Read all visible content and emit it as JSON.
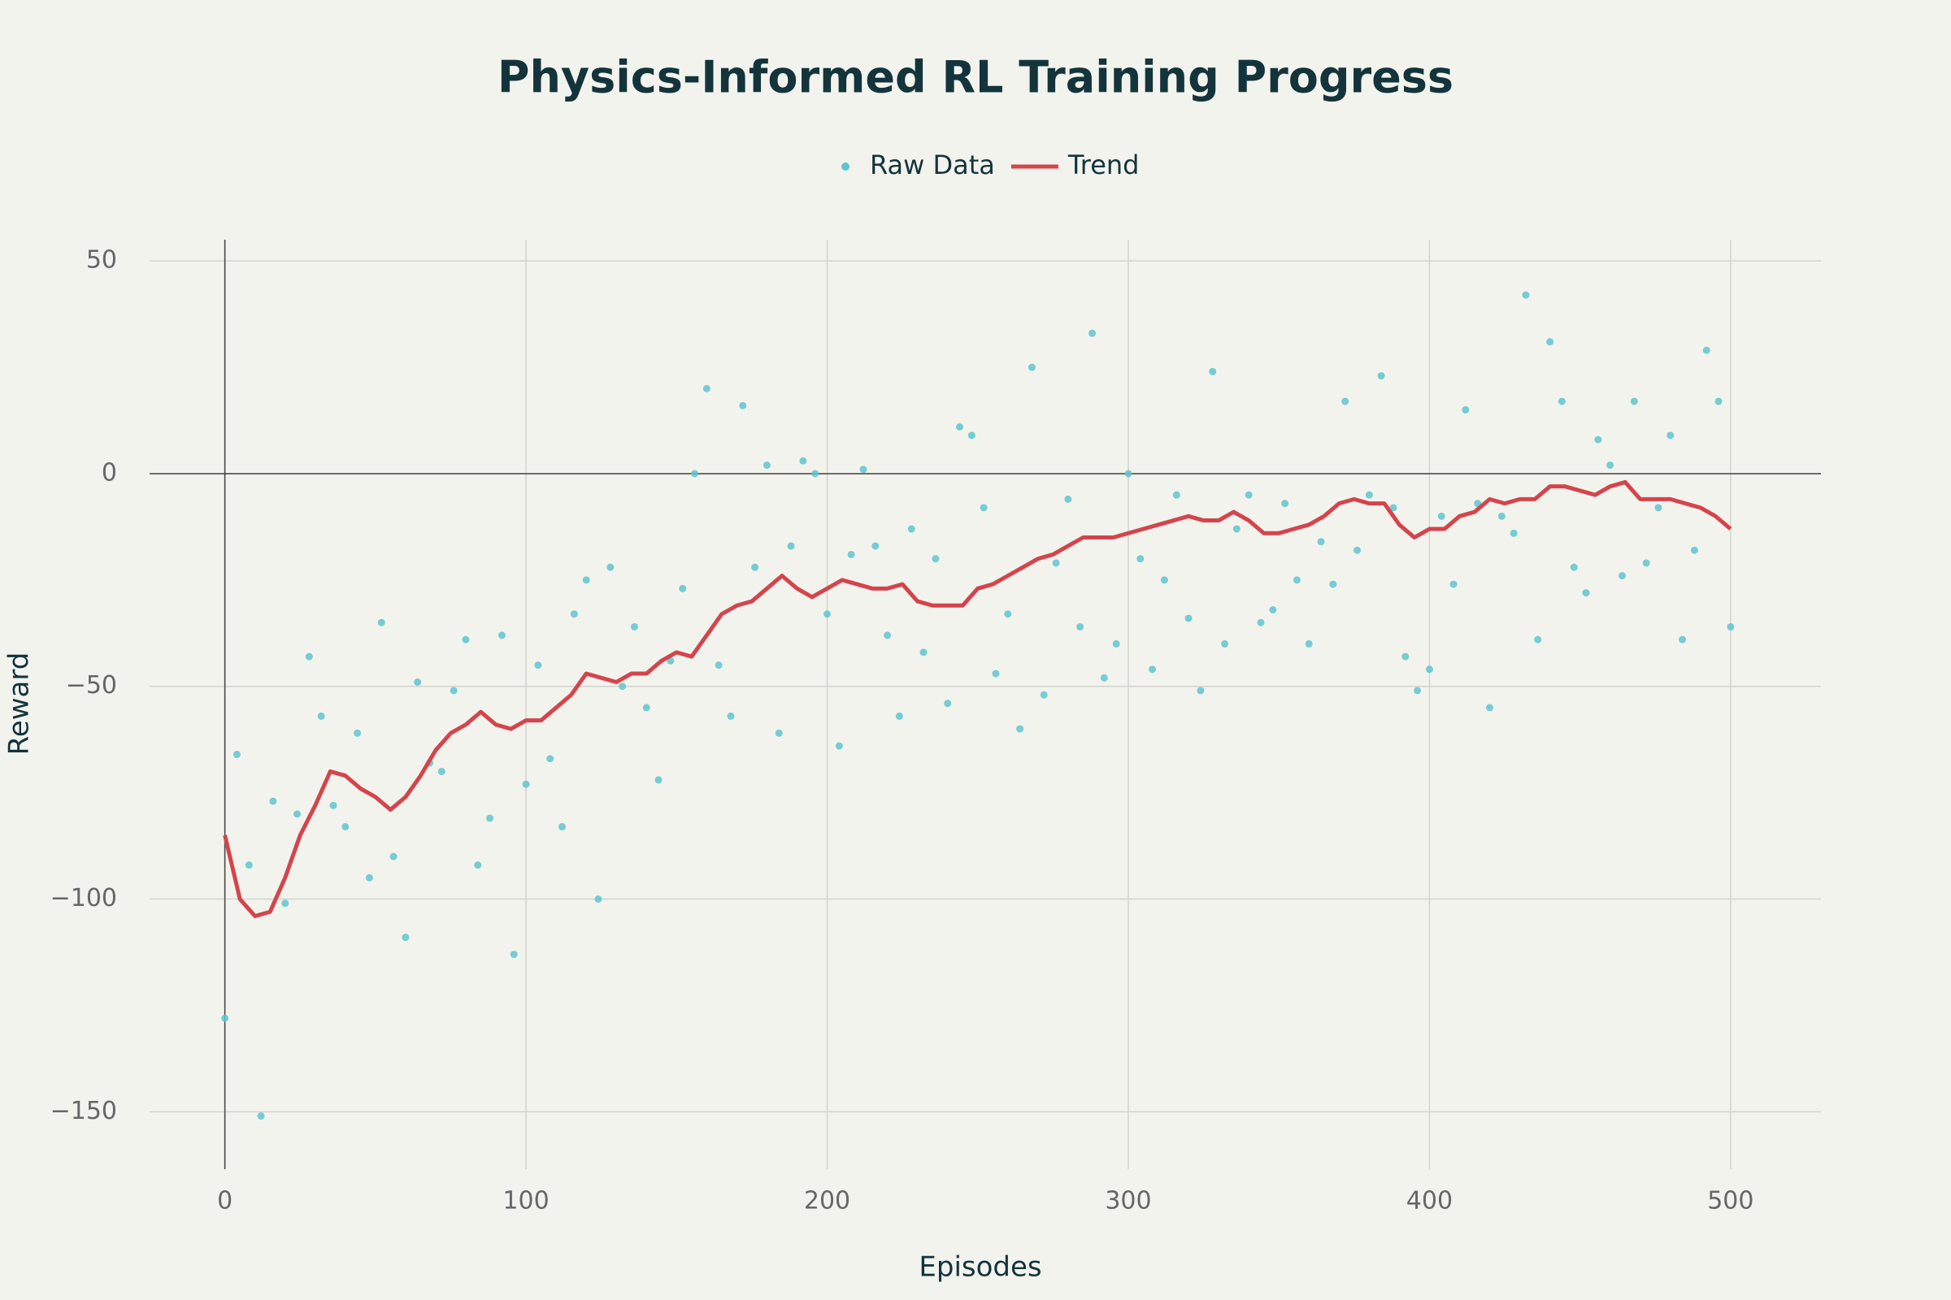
{
  "chart_data": {
    "type": "scatter",
    "title": "Physics-Informed RL Training Progress",
    "x_label": "Episodes",
    "y_label": "Reward",
    "xlim": [
      -25,
      530
    ],
    "ylim": [
      -163.5,
      55
    ],
    "xticks": [
      0,
      100,
      200,
      300,
      400,
      500
    ],
    "yticks": [
      50,
      0,
      {
        "value": -50,
        "label": "−50"
      },
      {
        "value": -100,
        "label": "−100"
      },
      {
        "value": -150,
        "label": "−150"
      }
    ],
    "grid": true,
    "zeroline": true,
    "legend": "top",
    "series": [
      {
        "name": "Raw Data",
        "mode": "markers",
        "color": "#5ec4cf",
        "x": [
          0,
          4,
          8,
          12,
          16,
          20,
          24,
          28,
          32,
          36,
          40,
          44,
          48,
          52,
          56,
          60,
          64,
          68,
          72,
          76,
          80,
          84,
          88,
          92,
          96,
          100,
          104,
          108,
          112,
          116,
          120,
          124,
          128,
          132,
          136,
          140,
          144,
          148,
          152,
          156,
          160,
          164,
          168,
          172,
          176,
          180,
          184,
          188,
          192,
          196,
          200,
          204,
          208,
          212,
          216,
          220,
          224,
          228,
          232,
          236,
          240,
          244,
          248,
          252,
          256,
          260,
          264,
          268,
          272,
          276,
          280,
          284,
          288,
          292,
          296,
          300,
          304,
          308,
          312,
          316,
          320,
          324,
          328,
          332,
          336,
          340,
          344,
          348,
          352,
          356,
          360,
          364,
          368,
          372,
          376,
          380,
          384,
          388,
          392,
          396,
          400,
          404,
          408,
          412,
          416,
          420,
          424,
          428,
          432,
          436,
          440,
          444,
          448,
          452,
          456,
          460,
          464,
          468,
          472,
          476,
          480,
          484,
          488,
          492,
          496,
          500
        ],
        "values": [
          -128,
          -66,
          -92,
          -151,
          -77,
          -101,
          -80,
          -43,
          -57,
          -78,
          -83,
          -61,
          -95,
          -35,
          -90,
          -109,
          -49,
          -68,
          -70,
          -51,
          -39,
          -92,
          -81,
          -38,
          -113,
          -73,
          -45,
          -67,
          -83,
          -33,
          -25,
          -100,
          -22,
          -50,
          -36,
          -55,
          -72,
          -44,
          -27,
          0,
          20,
          -45,
          -57,
          16,
          -22,
          2,
          -61,
          -17,
          3,
          0,
          -33,
          -64,
          -19,
          1,
          -17,
          -38,
          -57,
          -13,
          -42,
          -20,
          -54,
          11,
          9,
          -8,
          -47,
          -33,
          -60,
          25,
          -52,
          -21,
          -6,
          -36,
          33,
          -48,
          -40,
          0,
          -20,
          -46,
          -25,
          -5,
          -34,
          -51,
          24,
          -40,
          -13,
          -5,
          -35,
          -32,
          -7,
          -25,
          -40,
          -16,
          -26,
          17,
          -18,
          -5,
          23,
          -8,
          -43,
          -51,
          -46,
          -10,
          -26,
          15,
          -7,
          -55,
          -10,
          -14,
          42,
          -39,
          31,
          17,
          -22,
          -28,
          8,
          2,
          -24,
          17,
          -21,
          -8,
          9,
          -39,
          -18,
          29,
          17,
          -36
        ]
      },
      {
        "name": "Trend",
        "mode": "lines",
        "color": "#d5444b",
        "x": [
          0,
          5,
          10,
          15,
          20,
          25,
          30,
          35,
          40,
          45,
          50,
          55,
          60,
          65,
          70,
          75,
          80,
          85,
          90,
          95,
          100,
          105,
          110,
          115,
          120,
          125,
          130,
          135,
          140,
          145,
          150,
          155,
          160,
          165,
          170,
          175,
          180,
          185,
          190,
          195,
          200,
          205,
          210,
          215,
          220,
          225,
          230,
          235,
          240,
          245,
          250,
          255,
          260,
          265,
          270,
          275,
          280,
          285,
          290,
          295,
          300,
          305,
          310,
          315,
          320,
          325,
          330,
          335,
          340,
          345,
          350,
          355,
          360,
          365,
          370,
          375,
          380,
          385,
          390,
          395,
          400,
          405,
          410,
          415,
          420,
          425,
          430,
          435,
          440,
          445,
          450,
          455,
          460,
          465,
          470,
          475,
          480,
          485,
          490,
          495,
          500
        ],
        "values": [
          -85,
          -100,
          -104,
          -103,
          -95,
          -85,
          -78,
          -70,
          -71,
          -74,
          -76,
          -79,
          -76,
          -71,
          -65,
          -61,
          -59,
          -56,
          -59,
          -60,
          -58,
          -58,
          -55,
          -52,
          -47,
          -48,
          -49,
          -47,
          -47,
          -44,
          -42,
          -43,
          -38,
          -33,
          -31,
          -30,
          -27,
          -24,
          -27,
          -29,
          -27,
          -25,
          -26,
          -27,
          -27,
          -26,
          -30,
          -31,
          -31,
          -31,
          -27,
          -26,
          -24,
          -22,
          -20,
          -19,
          -17,
          -15,
          -15,
          -15,
          -14,
          -13,
          -12,
          -11,
          -10,
          -11,
          -11,
          -9,
          -11,
          -14,
          -14,
          -13,
          -12,
          -10,
          -7,
          -6,
          -7,
          -7,
          -12,
          -15,
          -13,
          -13,
          -10,
          -9,
          -6,
          -7,
          -6,
          -6,
          -3,
          -3,
          -4,
          -5,
          -3,
          -2,
          -6,
          -6,
          -6,
          -7,
          -8,
          -10,
          -13
        ]
      }
    ]
  }
}
